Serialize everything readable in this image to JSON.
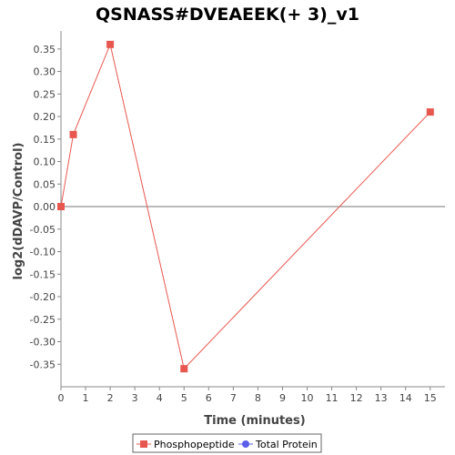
{
  "chart_data": {
    "type": "line",
    "title": "QSNASS#DVEAEEK(+ 3)_v1",
    "xlabel": "Time (minutes)",
    "ylabel": "log2(dDAVP/Control)",
    "xlim": [
      0,
      15.6
    ],
    "ylim": [
      -0.4,
      0.39
    ],
    "xticks": [
      0,
      1,
      2,
      3,
      4,
      5,
      6,
      7,
      8,
      9,
      10,
      11,
      12,
      13,
      14,
      15
    ],
    "xtick_labels": [
      "0",
      "1",
      "2",
      "3",
      "4",
      "5",
      "6",
      "7",
      "8",
      "9",
      "10",
      "11",
      "12",
      "13",
      "14",
      "15"
    ],
    "yticks": [
      0.35,
      0.3,
      0.25,
      0.2,
      0.15,
      0.1,
      0.05,
      0.0,
      -0.05,
      -0.1,
      -0.15,
      -0.2,
      -0.25,
      -0.3,
      -0.35
    ],
    "ytick_labels": [
      "0.35",
      "0.30",
      "0.25",
      "0.20",
      "0.15",
      "0.10",
      "0.05",
      "0.00",
      "-0.05",
      "-0.10",
      "-0.15",
      "-0.20",
      "-0.25",
      "-0.30",
      "-0.35"
    ],
    "grid": false,
    "zero_line": true,
    "legend_position": "bottom",
    "series": [
      {
        "name": "Phosphopeptide",
        "color": "#e8574f",
        "marker": "square",
        "x": [
          0,
          0.5,
          2,
          5,
          15
        ],
        "y": [
          0.0,
          0.16,
          0.36,
          -0.36,
          0.21
        ]
      },
      {
        "name": "Total Protein",
        "color": "#5a5ee8",
        "marker": "circle",
        "x": [],
        "y": []
      }
    ]
  }
}
